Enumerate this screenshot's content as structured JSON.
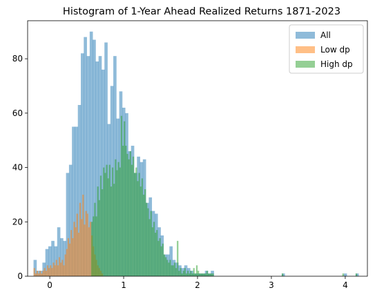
{
  "chart_data": {
    "type": "histogram",
    "title": "Histogram of 1-Year Ahead Realized Returns 1871-2023",
    "xlabel": "",
    "ylabel": "",
    "xlim": [
      -0.3,
      4.3
    ],
    "ylim": [
      0,
      94
    ],
    "xticks": [
      0,
      1,
      2,
      3,
      4
    ],
    "yticks": [
      0,
      20,
      40,
      60,
      80
    ],
    "grid": false,
    "legend_position": "top-right",
    "series": [
      {
        "name": "All",
        "color": "#1f77b4",
        "alpha": 0.5,
        "bin_width": 0.0434,
        "bins": [
          [
            -0.22,
            6
          ],
          [
            -0.18,
            2
          ],
          [
            -0.14,
            2
          ],
          [
            -0.1,
            5
          ],
          [
            -0.06,
            10
          ],
          [
            -0.02,
            11
          ],
          [
            0.02,
            13
          ],
          [
            0.06,
            11
          ],
          [
            0.1,
            18
          ],
          [
            0.14,
            14
          ],
          [
            0.18,
            13
          ],
          [
            0.22,
            38
          ],
          [
            0.26,
            41
          ],
          [
            0.3,
            55
          ],
          [
            0.34,
            55
          ],
          [
            0.38,
            63
          ],
          [
            0.42,
            82
          ],
          [
            0.46,
            88
          ],
          [
            0.5,
            81
          ],
          [
            0.54,
            90
          ],
          [
            0.58,
            87
          ],
          [
            0.62,
            79
          ],
          [
            0.66,
            81
          ],
          [
            0.7,
            76
          ],
          [
            0.74,
            86
          ],
          [
            0.78,
            56
          ],
          [
            0.82,
            70
          ],
          [
            0.86,
            81
          ],
          [
            0.9,
            58
          ],
          [
            0.94,
            68
          ],
          [
            0.98,
            62
          ],
          [
            1.02,
            60
          ],
          [
            1.06,
            46
          ],
          [
            1.1,
            48
          ],
          [
            1.14,
            38
          ],
          [
            1.18,
            44
          ],
          [
            1.22,
            42
          ],
          [
            1.26,
            43
          ],
          [
            1.3,
            27
          ],
          [
            1.34,
            29
          ],
          [
            1.38,
            24
          ],
          [
            1.42,
            23
          ],
          [
            1.46,
            18
          ],
          [
            1.5,
            15
          ],
          [
            1.54,
            8
          ],
          [
            1.58,
            8
          ],
          [
            1.62,
            11
          ],
          [
            1.66,
            6
          ],
          [
            1.7,
            5
          ],
          [
            1.74,
            4
          ],
          [
            1.78,
            3
          ],
          [
            1.82,
            4
          ],
          [
            1.86,
            3
          ],
          [
            1.9,
            2
          ],
          [
            1.94,
            1
          ],
          [
            1.98,
            1
          ],
          [
            2.02,
            1
          ],
          [
            2.06,
            1
          ],
          [
            2.1,
            2
          ],
          [
            2.14,
            1
          ],
          [
            2.18,
            2
          ],
          [
            2.22,
            0
          ],
          [
            3.14,
            1
          ],
          [
            3.98,
            1
          ],
          [
            4.14,
            1
          ]
        ]
      },
      {
        "name": "Low dp",
        "color": "#ff7f0e",
        "alpha": 0.5,
        "bin_width": 0.0217,
        "bins": [
          [
            -0.22,
            3
          ],
          [
            -0.2,
            1
          ],
          [
            -0.18,
            2
          ],
          [
            -0.16,
            1
          ],
          [
            -0.14,
            2
          ],
          [
            -0.12,
            1
          ],
          [
            -0.1,
            2
          ],
          [
            -0.08,
            3
          ],
          [
            -0.06,
            2
          ],
          [
            -0.04,
            4
          ],
          [
            -0.02,
            3
          ],
          [
            0.0,
            4
          ],
          [
            0.02,
            3
          ],
          [
            0.04,
            5
          ],
          [
            0.06,
            4
          ],
          [
            0.08,
            6
          ],
          [
            0.1,
            4
          ],
          [
            0.12,
            7
          ],
          [
            0.14,
            5
          ],
          [
            0.16,
            6
          ],
          [
            0.18,
            4
          ],
          [
            0.2,
            8
          ],
          [
            0.22,
            10
          ],
          [
            0.24,
            14
          ],
          [
            0.26,
            12
          ],
          [
            0.28,
            17
          ],
          [
            0.3,
            14
          ],
          [
            0.32,
            20
          ],
          [
            0.34,
            18
          ],
          [
            0.36,
            23
          ],
          [
            0.38,
            16
          ],
          [
            0.4,
            27
          ],
          [
            0.42,
            21
          ],
          [
            0.44,
            30
          ],
          [
            0.46,
            19
          ],
          [
            0.48,
            24
          ],
          [
            0.5,
            23
          ],
          [
            0.52,
            18
          ],
          [
            0.54,
            20
          ],
          [
            0.56,
            15
          ],
          [
            0.58,
            11
          ],
          [
            0.6,
            8
          ],
          [
            0.62,
            6
          ],
          [
            0.64,
            4
          ],
          [
            0.66,
            3
          ],
          [
            0.68,
            2
          ],
          [
            0.7,
            1
          ]
        ]
      },
      {
        "name": "High dp",
        "color": "#2ca02c",
        "alpha": 0.5,
        "bin_width": 0.0217,
        "bins": [
          [
            0.56,
            20
          ],
          [
            0.58,
            22
          ],
          [
            0.6,
            27
          ],
          [
            0.62,
            22
          ],
          [
            0.64,
            33
          ],
          [
            0.66,
            28
          ],
          [
            0.68,
            37
          ],
          [
            0.7,
            32
          ],
          [
            0.72,
            40
          ],
          [
            0.74,
            38
          ],
          [
            0.76,
            41
          ],
          [
            0.78,
            36
          ],
          [
            0.8,
            41
          ],
          [
            0.82,
            33
          ],
          [
            0.84,
            40
          ],
          [
            0.86,
            34
          ],
          [
            0.88,
            43
          ],
          [
            0.9,
            39
          ],
          [
            0.92,
            42
          ],
          [
            0.94,
            40
          ],
          [
            0.96,
            59
          ],
          [
            0.98,
            48
          ],
          [
            1.0,
            57
          ],
          [
            1.02,
            48
          ],
          [
            1.04,
            45
          ],
          [
            1.06,
            43
          ],
          [
            1.08,
            46
          ],
          [
            1.1,
            41
          ],
          [
            1.12,
            44
          ],
          [
            1.14,
            38
          ],
          [
            1.16,
            40
          ],
          [
            1.18,
            35
          ],
          [
            1.2,
            38
          ],
          [
            1.22,
            33
          ],
          [
            1.24,
            36
          ],
          [
            1.26,
            30
          ],
          [
            1.28,
            32
          ],
          [
            1.3,
            27
          ],
          [
            1.32,
            25
          ],
          [
            1.34,
            21
          ],
          [
            1.36,
            24
          ],
          [
            1.38,
            18
          ],
          [
            1.4,
            20
          ],
          [
            1.42,
            16
          ],
          [
            1.44,
            17
          ],
          [
            1.46,
            13
          ],
          [
            1.48,
            14
          ],
          [
            1.5,
            11
          ],
          [
            1.52,
            12
          ],
          [
            1.54,
            8
          ],
          [
            1.56,
            7
          ],
          [
            1.58,
            6
          ],
          [
            1.6,
            5
          ],
          [
            1.62,
            6
          ],
          [
            1.64,
            4
          ],
          [
            1.66,
            4
          ],
          [
            1.68,
            5
          ],
          [
            1.7,
            3
          ],
          [
            1.72,
            13
          ],
          [
            1.74,
            2
          ],
          [
            1.76,
            3
          ],
          [
            1.78,
            1
          ],
          [
            1.8,
            2
          ],
          [
            1.82,
            3
          ],
          [
            1.84,
            1
          ],
          [
            1.86,
            2
          ],
          [
            1.88,
            1
          ],
          [
            1.9,
            2
          ],
          [
            1.92,
            1
          ],
          [
            1.94,
            3
          ],
          [
            1.96,
            1
          ],
          [
            1.98,
            4
          ],
          [
            2.0,
            2
          ],
          [
            2.02,
            1
          ],
          [
            2.04,
            1
          ],
          [
            2.06,
            1
          ],
          [
            2.08,
            1
          ],
          [
            2.1,
            1
          ],
          [
            2.12,
            2
          ],
          [
            2.14,
            1
          ],
          [
            2.16,
            1
          ],
          [
            2.18,
            1
          ],
          [
            2.2,
            1
          ],
          [
            3.14,
            1
          ],
          [
            3.96,
            1
          ],
          [
            4.14,
            1
          ]
        ]
      }
    ]
  }
}
